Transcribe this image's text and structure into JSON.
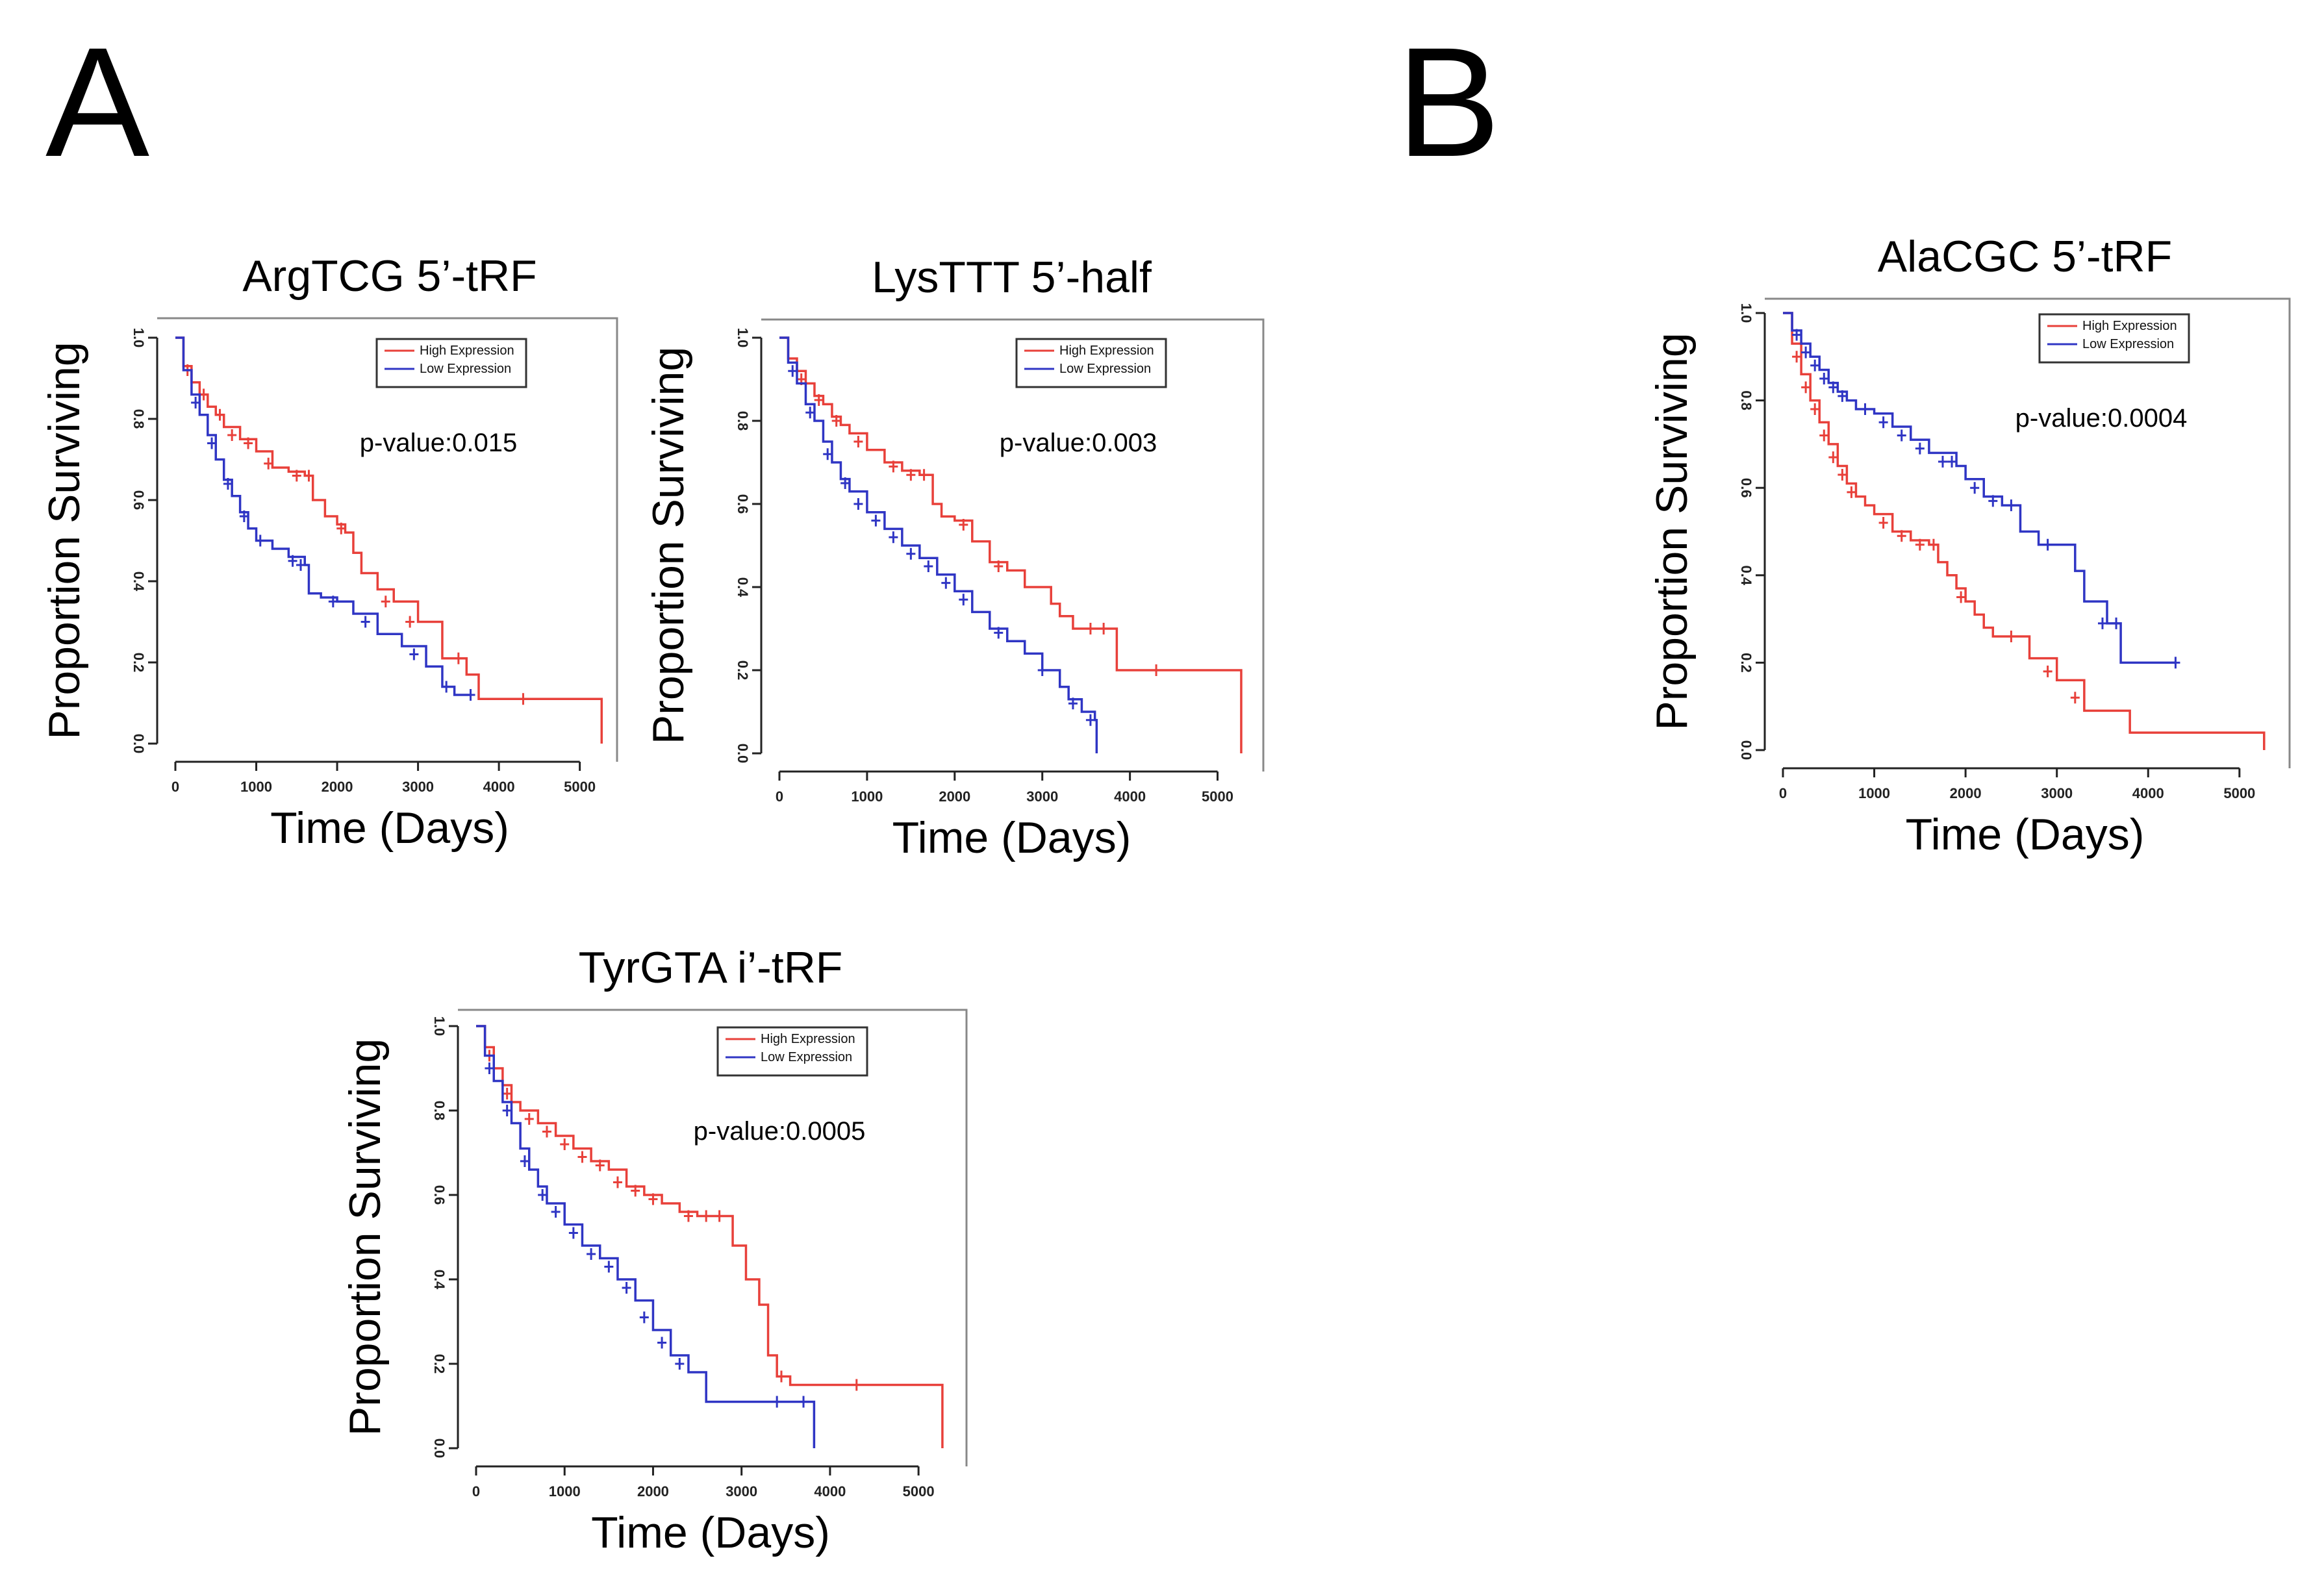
{
  "panels": [
    {
      "letter": "A"
    },
    {
      "letter": "B"
    }
  ],
  "colors": {
    "high": "#e8403a",
    "low": "#2f35c4",
    "axis": "#222222",
    "frame": "#888888"
  },
  "chart_data": [
    {
      "id": "argtcg",
      "type": "line",
      "panel": "A",
      "title": "ArgTCG 5’-tRF",
      "xlabel": "Time (Days)",
      "ylabel": "Proportion Surviving",
      "xlim": [
        0,
        5300
      ],
      "ylim": [
        0,
        1.0
      ],
      "xticks": [
        0,
        1000,
        2000,
        3000,
        4000,
        5000
      ],
      "yticks": [
        0.0,
        0.2,
        0.4,
        0.6,
        0.8,
        1.0
      ],
      "ytick_labels": [
        "0.0",
        "0.2",
        "0.4",
        "0.6",
        "0.8",
        "1.0"
      ],
      "legend": [
        "High Expression",
        "Low Expression"
      ],
      "annotation": "p-value:0.015",
      "legend_position": "top-right",
      "series": [
        {
          "name": "High Expression",
          "color": "#e8403a",
          "x": [
            0,
            100,
            200,
            300,
            400,
            500,
            600,
            800,
            1000,
            1200,
            1400,
            1600,
            1700,
            1850,
            2000,
            2100,
            2200,
            2300,
            2500,
            2700,
            3000,
            3300,
            3600,
            3750,
            5250,
            5270
          ],
          "y": [
            1.0,
            0.93,
            0.89,
            0.86,
            0.83,
            0.81,
            0.78,
            0.75,
            0.72,
            0.68,
            0.67,
            0.66,
            0.6,
            0.56,
            0.54,
            0.52,
            0.47,
            0.42,
            0.38,
            0.35,
            0.3,
            0.21,
            0.17,
            0.11,
            0.11,
            0.0
          ],
          "censor_x": [
            150,
            350,
            550,
            700,
            900,
            1150,
            1500,
            1650,
            2050,
            2600,
            2900,
            3500,
            4300
          ],
          "censor_y": [
            0.92,
            0.86,
            0.81,
            0.76,
            0.74,
            0.69,
            0.66,
            0.66,
            0.53,
            0.35,
            0.3,
            0.21,
            0.11
          ]
        },
        {
          "name": "Low Expression",
          "color": "#2f35c4",
          "x": [
            0,
            100,
            200,
            300,
            400,
            500,
            600,
            700,
            800,
            900,
            1000,
            1200,
            1400,
            1600,
            1650,
            1800,
            2000,
            2200,
            2500,
            2800,
            3100,
            3300,
            3450,
            3650
          ],
          "y": [
            1.0,
            0.92,
            0.86,
            0.81,
            0.76,
            0.7,
            0.65,
            0.61,
            0.57,
            0.53,
            0.5,
            0.48,
            0.46,
            0.44,
            0.37,
            0.36,
            0.35,
            0.32,
            0.27,
            0.24,
            0.19,
            0.14,
            0.12,
            0.12
          ],
          "censor_x": [
            250,
            450,
            650,
            850,
            1050,
            1450,
            1550,
            1950,
            2350,
            2950,
            3350,
            3650
          ],
          "censor_y": [
            0.84,
            0.74,
            0.64,
            0.56,
            0.5,
            0.45,
            0.44,
            0.35,
            0.3,
            0.22,
            0.14,
            0.12
          ]
        }
      ]
    },
    {
      "id": "lysttt",
      "type": "line",
      "panel": "A",
      "title": "LysTTT 5’-half",
      "xlabel": "Time (Days)",
      "ylabel": "Proportion Surviving",
      "xlim": [
        0,
        5300
      ],
      "ylim": [
        0,
        1.0
      ],
      "xticks": [
        0,
        1000,
        2000,
        3000,
        4000,
        5000
      ],
      "yticks": [
        0.0,
        0.2,
        0.4,
        0.6,
        0.8,
        1.0
      ],
      "ytick_labels": [
        "0.0",
        "0.2",
        "0.4",
        "0.6",
        "0.8",
        "1.0"
      ],
      "legend": [
        "High Expression",
        "Low Expression"
      ],
      "annotation": "p-value:0.003",
      "legend_position": "top-right",
      "series": [
        {
          "name": "High Expression",
          "color": "#e8403a",
          "x": [
            0,
            100,
            200,
            300,
            400,
            500,
            600,
            700,
            800,
            1000,
            1200,
            1400,
            1600,
            1750,
            1850,
            2000,
            2200,
            2400,
            2600,
            2800,
            3000,
            3100,
            3200,
            3350,
            3800,
            3850,
            5250,
            5270
          ],
          "y": [
            1.0,
            0.95,
            0.92,
            0.89,
            0.86,
            0.84,
            0.81,
            0.79,
            0.77,
            0.73,
            0.7,
            0.68,
            0.67,
            0.6,
            0.57,
            0.56,
            0.51,
            0.46,
            0.44,
            0.4,
            0.4,
            0.36,
            0.33,
            0.3,
            0.3,
            0.2,
            0.2,
            0.0
          ],
          "censor_x": [
            250,
            450,
            650,
            900,
            1300,
            1500,
            1650,
            2100,
            2500,
            3550,
            3700,
            4300
          ],
          "censor_y": [
            0.9,
            0.85,
            0.8,
            0.75,
            0.69,
            0.67,
            0.67,
            0.55,
            0.45,
            0.3,
            0.3,
            0.2
          ]
        },
        {
          "name": "Low Expression",
          "color": "#2f35c4",
          "x": [
            0,
            100,
            200,
            300,
            400,
            500,
            600,
            700,
            800,
            1000,
            1200,
            1400,
            1600,
            1800,
            2000,
            2200,
            2400,
            2600,
            2800,
            3000,
            3200,
            3300,
            3450,
            3600,
            3620
          ],
          "y": [
            1.0,
            0.94,
            0.89,
            0.84,
            0.8,
            0.75,
            0.7,
            0.66,
            0.63,
            0.58,
            0.54,
            0.5,
            0.47,
            0.43,
            0.39,
            0.34,
            0.3,
            0.27,
            0.24,
            0.2,
            0.16,
            0.13,
            0.1,
            0.08,
            0.0
          ],
          "censor_x": [
            150,
            350,
            550,
            750,
            900,
            1100,
            1300,
            1500,
            1700,
            1900,
            2100,
            2500,
            3000,
            3350,
            3550
          ],
          "censor_y": [
            0.92,
            0.82,
            0.72,
            0.65,
            0.6,
            0.56,
            0.52,
            0.48,
            0.45,
            0.41,
            0.37,
            0.29,
            0.2,
            0.12,
            0.08
          ]
        }
      ]
    },
    {
      "id": "tyrgta",
      "type": "line",
      "panel": "A",
      "title": "TyrGTA i’-tRF",
      "xlabel": "Time (Days)",
      "ylabel": "Proportion Surviving",
      "xlim": [
        0,
        5300
      ],
      "ylim": [
        0,
        1.0
      ],
      "xticks": [
        0,
        1000,
        2000,
        3000,
        4000,
        5000
      ],
      "yticks": [
        0.0,
        0.2,
        0.4,
        0.6,
        0.8,
        1.0
      ],
      "ytick_labels": [
        "0.0",
        "0.2",
        "0.4",
        "0.6",
        "0.8",
        "1.0"
      ],
      "legend": [
        "High Expression",
        "Low Expression"
      ],
      "annotation": "p-value:0.0005",
      "legend_position": "top-right",
      "series": [
        {
          "name": "High Expression",
          "color": "#e8403a",
          "x": [
            0,
            100,
            200,
            300,
            400,
            500,
            700,
            900,
            1100,
            1300,
            1500,
            1700,
            1900,
            2100,
            2300,
            2500,
            2800,
            2900,
            3050,
            3200,
            3300,
            3400,
            3550,
            5250,
            5270
          ],
          "y": [
            1.0,
            0.95,
            0.9,
            0.86,
            0.82,
            0.8,
            0.77,
            0.74,
            0.71,
            0.68,
            0.66,
            0.62,
            0.6,
            0.58,
            0.56,
            0.55,
            0.55,
            0.48,
            0.4,
            0.34,
            0.22,
            0.17,
            0.15,
            0.15,
            0.0
          ],
          "censor_x": [
            150,
            350,
            600,
            800,
            1000,
            1200,
            1400,
            1600,
            1800,
            2000,
            2400,
            2600,
            2750,
            3450,
            4300
          ],
          "censor_y": [
            0.93,
            0.84,
            0.78,
            0.75,
            0.72,
            0.69,
            0.67,
            0.63,
            0.61,
            0.59,
            0.55,
            0.55,
            0.55,
            0.17,
            0.15
          ]
        },
        {
          "name": "Low Expression",
          "color": "#2f35c4",
          "x": [
            0,
            100,
            200,
            300,
            400,
            500,
            600,
            700,
            800,
            1000,
            1200,
            1400,
            1600,
            1800,
            2000,
            2200,
            2400,
            2600,
            3800,
            3820
          ],
          "y": [
            1.0,
            0.93,
            0.87,
            0.82,
            0.77,
            0.71,
            0.66,
            0.62,
            0.58,
            0.53,
            0.48,
            0.45,
            0.4,
            0.35,
            0.28,
            0.22,
            0.18,
            0.11,
            0.11,
            0.0
          ],
          "censor_x": [
            150,
            350,
            550,
            750,
            900,
            1100,
            1300,
            1500,
            1700,
            1900,
            2100,
            2300,
            3400,
            3700
          ],
          "censor_y": [
            0.9,
            0.8,
            0.68,
            0.6,
            0.56,
            0.51,
            0.46,
            0.43,
            0.38,
            0.31,
            0.25,
            0.2,
            0.11,
            0.11
          ]
        }
      ]
    },
    {
      "id": "alacgc",
      "type": "line",
      "panel": "B",
      "title": "AlaCGC 5’-tRF",
      "xlabel": "Time (Days)",
      "ylabel": "Proportion Surviving",
      "xlim": [
        0,
        5300
      ],
      "ylim": [
        0,
        1.0
      ],
      "xticks": [
        0,
        1000,
        2000,
        3000,
        4000,
        5000
      ],
      "yticks": [
        0.0,
        0.2,
        0.4,
        0.6,
        0.8,
        1.0
      ],
      "ytick_labels": [
        "0.0",
        "0.2",
        "0.4",
        "0.6",
        "0.8",
        "1.0"
      ],
      "legend": [
        "High Expression",
        "Low Expression"
      ],
      "annotation": "p-value:0.0004",
      "legend_position": "top-right",
      "series": [
        {
          "name": "High Expression",
          "color": "#e8403a",
          "x": [
            0,
            100,
            200,
            300,
            400,
            500,
            600,
            700,
            800,
            900,
            1000,
            1200,
            1400,
            1600,
            1700,
            1800,
            1900,
            2000,
            2100,
            2200,
            2300,
            2600,
            2700,
            3000,
            3300,
            3800,
            5250,
            5270
          ],
          "y": [
            1.0,
            0.93,
            0.86,
            0.8,
            0.75,
            0.7,
            0.65,
            0.61,
            0.58,
            0.56,
            0.54,
            0.5,
            0.48,
            0.47,
            0.43,
            0.4,
            0.37,
            0.34,
            0.31,
            0.28,
            0.26,
            0.26,
            0.21,
            0.16,
            0.09,
            0.04,
            0.04,
            0.0
          ],
          "censor_x": [
            150,
            250,
            350,
            450,
            550,
            650,
            750,
            1100,
            1300,
            1500,
            1650,
            1950,
            2500,
            2900,
            3200
          ],
          "censor_y": [
            0.9,
            0.83,
            0.78,
            0.72,
            0.67,
            0.63,
            0.59,
            0.52,
            0.49,
            0.47,
            0.47,
            0.35,
            0.26,
            0.18,
            0.12
          ]
        },
        {
          "name": "Low Expression",
          "color": "#2f35c4",
          "x": [
            0,
            100,
            200,
            300,
            400,
            500,
            600,
            700,
            800,
            1000,
            1200,
            1400,
            1600,
            1900,
            2000,
            2200,
            2400,
            2600,
            2800,
            3000,
            3200,
            3300,
            3550,
            3700,
            4300
          ],
          "y": [
            1.0,
            0.96,
            0.93,
            0.9,
            0.87,
            0.84,
            0.82,
            0.8,
            0.78,
            0.77,
            0.74,
            0.71,
            0.68,
            0.65,
            0.62,
            0.58,
            0.56,
            0.5,
            0.47,
            0.47,
            0.41,
            0.34,
            0.29,
            0.2,
            0.2
          ],
          "censor_x": [
            150,
            250,
            350,
            450,
            550,
            650,
            900,
            1100,
            1300,
            1500,
            1750,
            1850,
            2100,
            2300,
            2500,
            2900,
            3500,
            3650,
            4300
          ],
          "censor_y": [
            0.95,
            0.91,
            0.88,
            0.85,
            0.83,
            0.81,
            0.78,
            0.75,
            0.72,
            0.69,
            0.66,
            0.66,
            0.6,
            0.57,
            0.56,
            0.47,
            0.29,
            0.29,
            0.2
          ]
        }
      ]
    }
  ]
}
